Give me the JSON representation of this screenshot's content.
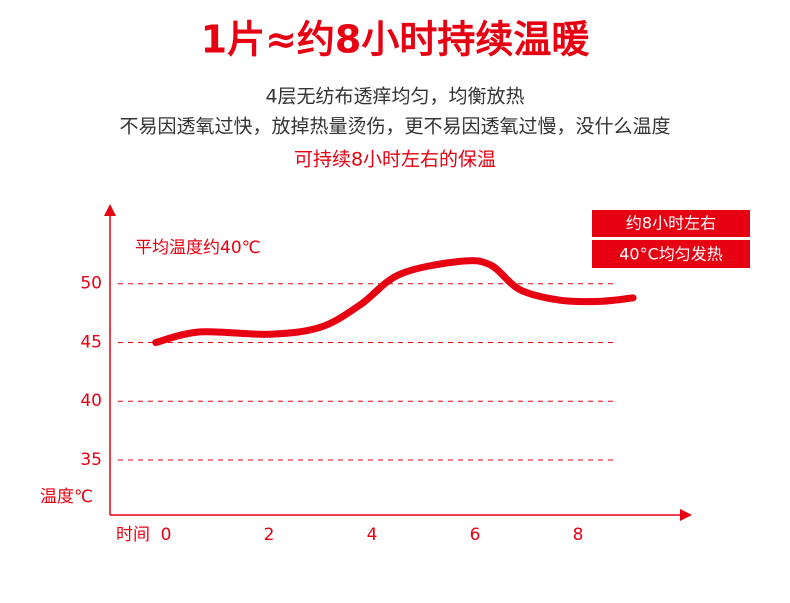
{
  "chart_data": {
    "type": "line",
    "title": "1片≈约8小时持续温暖",
    "subtitle": [
      "4层无纺布透痒均匀，均衡放热",
      "不易因透氧过快，放掉热量烫伤，更不易因透氧过慢，没什么温度",
      "可持续8小时左右的保温"
    ],
    "x_label": "时间",
    "y_label": "温度℃",
    "annotation": "平均温度约40℃",
    "badges": [
      "约8小时左右",
      "40°C均匀发热"
    ],
    "x": [
      -0.2,
      0.66,
      2,
      3,
      3.77,
      4.54,
      5.7,
      6.3,
      6.87,
      7.65,
      8.43,
      9.07
    ],
    "values": [
      45,
      45.9,
      45.7,
      46.3,
      48.2,
      50.8,
      51.9,
      51.6,
      49.5,
      48.6,
      48.5,
      48.8
    ],
    "color": "#e60012",
    "xlim": [
      -1,
      10
    ],
    "xticks": [
      0,
      2,
      4,
      6,
      8
    ],
    "ylim": [
      30,
      55
    ],
    "yticks": [
      35,
      40,
      45,
      50
    ],
    "grid": true
  }
}
